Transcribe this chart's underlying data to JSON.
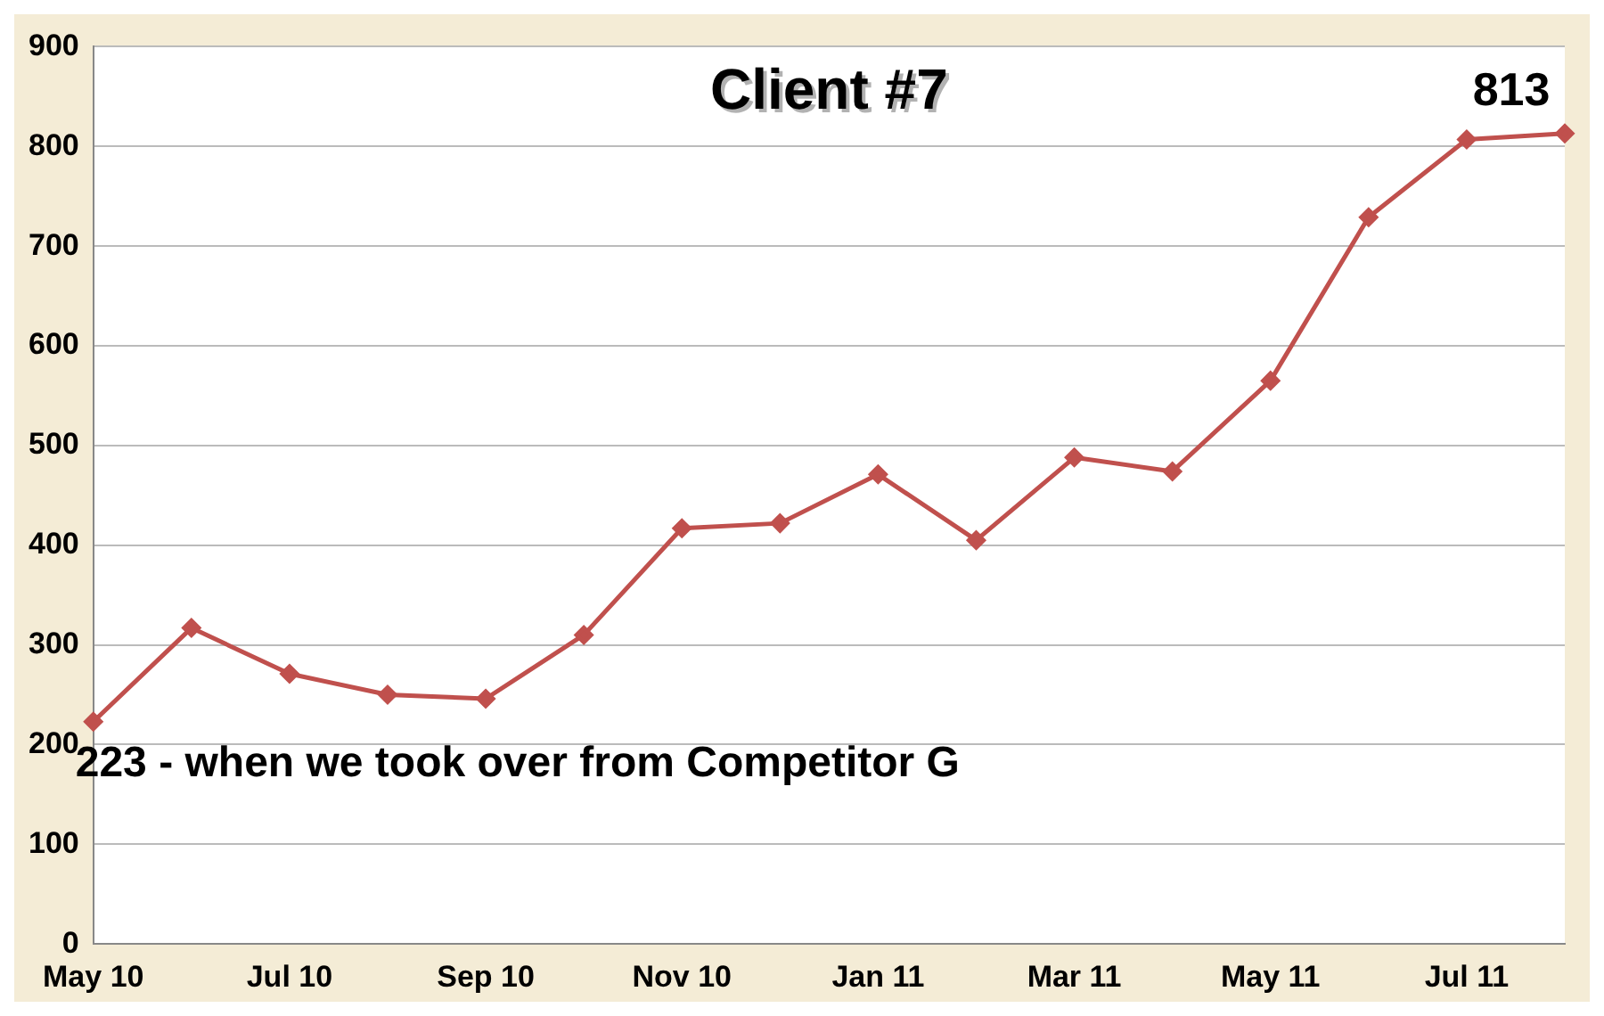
{
  "chart_data": {
    "type": "line",
    "title": "Client #7",
    "categories": [
      "May 10",
      null,
      "Jul 10",
      null,
      "Sep 10",
      null,
      "Nov 10",
      null,
      "Jan 11",
      null,
      "Mar 11",
      null,
      "May 11",
      null,
      "Jul 11",
      null
    ],
    "series": [
      {
        "color": "#c0504d",
        "values": [
          223,
          317,
          271,
          250,
          246,
          310,
          417,
          422,
          471,
          405,
          488,
          474,
          565,
          729,
          807,
          813
        ],
        "value_labels": [
          null,
          null,
          null,
          null,
          null,
          null,
          null,
          null,
          null,
          null,
          null,
          null,
          null,
          null,
          null,
          "813"
        ]
      }
    ],
    "ylim": [
      0,
      900
    ],
    "yticks": [
      0,
      100,
      200,
      300,
      400,
      500,
      600,
      700,
      800,
      900
    ],
    "grid": "y",
    "marker": "diamond",
    "line_style": "solid",
    "legend": false,
    "annotations": [
      {
        "text": "223 - when we took over from Competitor G",
        "x": "May 10",
        "y": 223
      }
    ]
  }
}
